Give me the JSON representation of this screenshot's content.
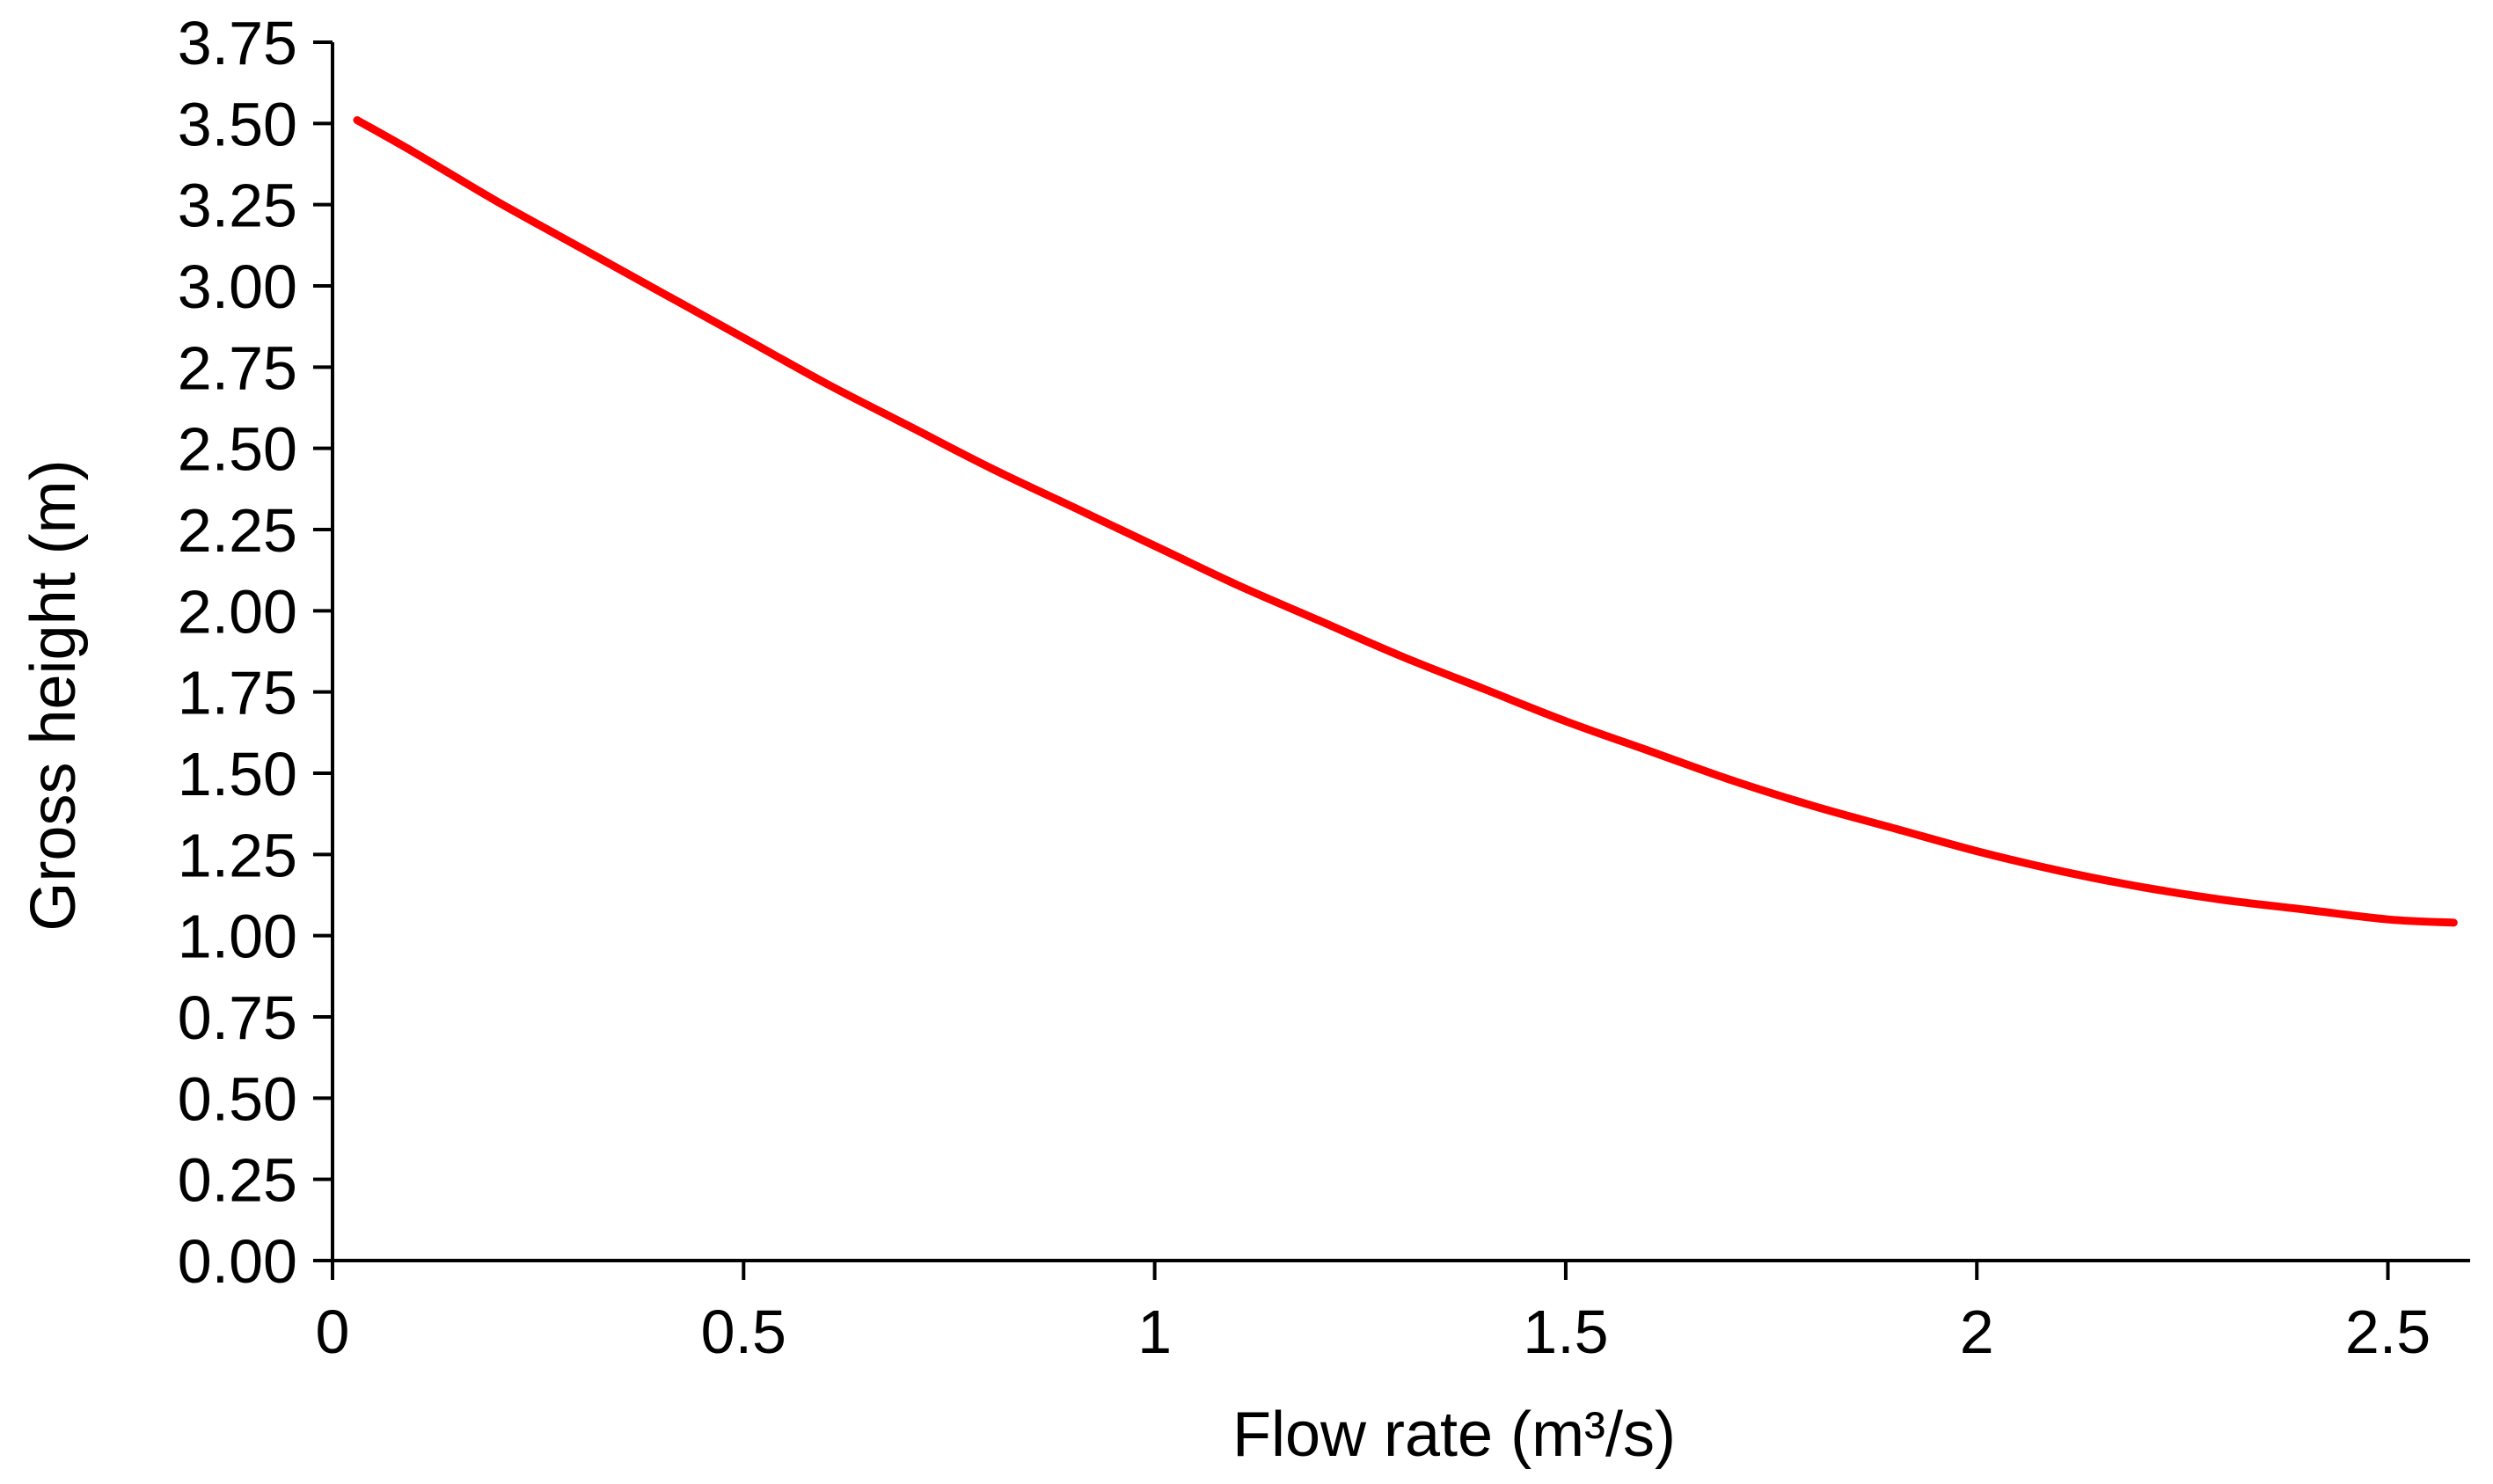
{
  "chart_data": {
    "type": "line",
    "title": "",
    "xlabel": "Flow rate (m³/s)",
    "ylabel": "Gross height (m)",
    "xlim": [
      0,
      2.6
    ],
    "ylim": [
      0,
      3.75
    ],
    "x_ticks": [
      {
        "value": 0,
        "label": "0"
      },
      {
        "value": 0.5,
        "label": "0.5"
      },
      {
        "value": 1,
        "label": "1"
      },
      {
        "value": 1.5,
        "label": "1.5"
      },
      {
        "value": 2,
        "label": "2"
      },
      {
        "value": 2.5,
        "label": "2.5"
      }
    ],
    "y_ticks": [
      {
        "value": 0,
        "label": "0.00"
      },
      {
        "value": 0.25,
        "label": "0.25"
      },
      {
        "value": 0.5,
        "label": "0.50"
      },
      {
        "value": 0.75,
        "label": "0.75"
      },
      {
        "value": 1.0,
        "label": "1.00"
      },
      {
        "value": 1.25,
        "label": "1.25"
      },
      {
        "value": 1.5,
        "label": "1.50"
      },
      {
        "value": 1.75,
        "label": "1.75"
      },
      {
        "value": 2.0,
        "label": "2.00"
      },
      {
        "value": 2.25,
        "label": "2.25"
      },
      {
        "value": 2.5,
        "label": "2.50"
      },
      {
        "value": 2.75,
        "label": "2.75"
      },
      {
        "value": 3.0,
        "label": "3.00"
      },
      {
        "value": 3.25,
        "label": "3.25"
      },
      {
        "value": 3.5,
        "label": "3.50"
      },
      {
        "value": 3.75,
        "label": "3.75"
      }
    ],
    "grid": false,
    "series": [
      {
        "name": "Gross height",
        "color": "#ff0000",
        "x": [
          0.03,
          0.1,
          0.2,
          0.3,
          0.4,
          0.5,
          0.6,
          0.7,
          0.8,
          0.9,
          1.0,
          1.1,
          1.2,
          1.3,
          1.4,
          1.5,
          1.6,
          1.7,
          1.8,
          1.9,
          2.0,
          2.1,
          2.2,
          2.3,
          2.4,
          2.5,
          2.58
        ],
        "y": [
          3.51,
          3.41,
          3.26,
          3.12,
          2.98,
          2.84,
          2.7,
          2.57,
          2.44,
          2.32,
          2.2,
          2.08,
          1.97,
          1.86,
          1.76,
          1.66,
          1.57,
          1.48,
          1.4,
          1.33,
          1.26,
          1.2,
          1.15,
          1.11,
          1.08,
          1.05,
          1.04
        ]
      }
    ]
  }
}
